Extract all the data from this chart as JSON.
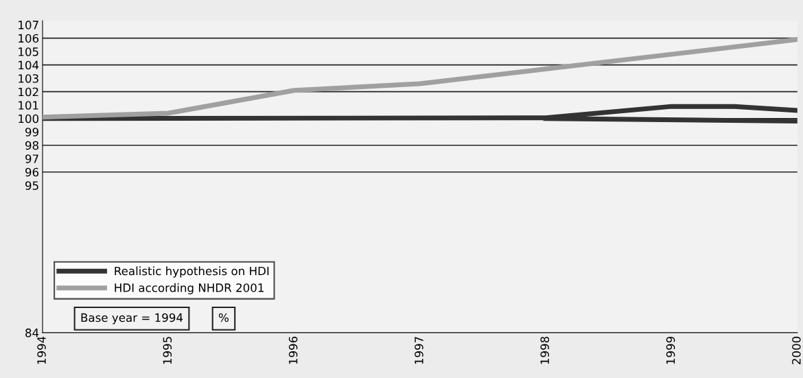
{
  "chart_data": {
    "type": "line",
    "x": [
      1994,
      1995,
      1996,
      1997,
      1998,
      1999,
      2000
    ],
    "xlim": [
      1994,
      2000
    ],
    "xticks": [
      1994,
      1995,
      1996,
      1997,
      1998,
      1999,
      2000
    ],
    "ylim": [
      84,
      107.3
    ],
    "yticks": [
      84,
      95,
      96,
      97,
      98,
      99,
      100,
      101,
      102,
      103,
      104,
      105,
      106,
      107
    ],
    "series": [
      {
        "name": "Realistic hypothesis on HDI",
        "color": "#333333",
        "x": [
          1994,
          1998,
          1999,
          1999.5,
          2000
        ],
        "values": [
          100,
          100.05,
          100.9,
          100.9,
          100.6
        ]
      },
      {
        "name": "HDI according NHDR 2001",
        "color": "#a0a0a0",
        "values": [
          100.1,
          100.4,
          102.1,
          102.6,
          103.7,
          104.8,
          105.9
        ]
      },
      {
        "color": "#333333",
        "x": [
          1998,
          2000
        ],
        "values": [
          100,
          99.8
        ]
      }
    ],
    "ref_lines": [
      {
        "axis": "y",
        "value": 96,
        "color": "#222222"
      },
      {
        "axis": "y",
        "value": 98,
        "color": "#222222"
      },
      {
        "axis": "y",
        "value": 100,
        "color": "#222222"
      },
      {
        "axis": "y",
        "value": 102,
        "color": "#222222"
      },
      {
        "axis": "y",
        "value": 104,
        "color": "#222222"
      },
      {
        "axis": "y",
        "value": 106,
        "color": "#222222"
      }
    ],
    "annotations": [
      "Base year = 1994",
      "%"
    ],
    "legend": "bottom left",
    "grid": false,
    "marker": "none",
    "line_style": "solid"
  }
}
